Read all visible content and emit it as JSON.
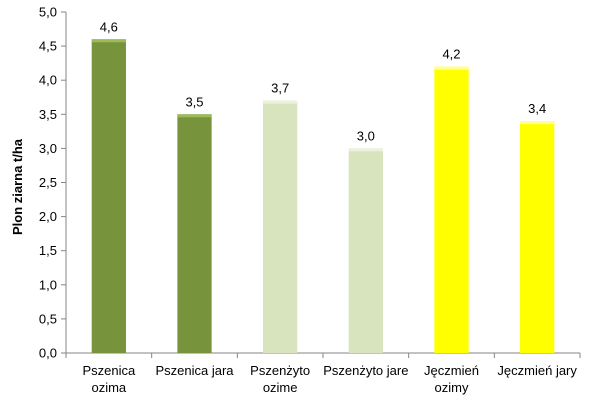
{
  "chart_data": {
    "type": "bar",
    "title": "",
    "xlabel": "",
    "ylabel": "Plon ziarna t/ha",
    "ylim": [
      0,
      5
    ],
    "y_ticks": [
      "0,0",
      "0,5",
      "1,0",
      "1,5",
      "2,0",
      "2,5",
      "3,0",
      "3,5",
      "4,0",
      "4,5",
      "5,0"
    ],
    "y_tick_values": [
      0,
      0.5,
      1.0,
      1.5,
      2.0,
      2.5,
      3.0,
      3.5,
      4.0,
      4.5,
      5.0
    ],
    "grid": false,
    "legend": "none",
    "categories": [
      [
        "Pszenica",
        "ozima"
      ],
      [
        "Pszenica jara"
      ],
      [
        "Pszenżyto",
        "ozime"
      ],
      [
        "Pszenżyto jare"
      ],
      [
        "Jęczmień",
        "ozimy"
      ],
      [
        "Jęczmień jary"
      ]
    ],
    "values": [
      4.6,
      3.5,
      3.7,
      3.0,
      4.2,
      3.4
    ],
    "value_labels": [
      "4,6",
      "3,5",
      "3,7",
      "3,0",
      "4,2",
      "3,4"
    ],
    "bar_colors": [
      "#77933c",
      "#77933c",
      "#d7e4bd",
      "#d7e4bd",
      "#ffff00",
      "#ffff00"
    ],
    "bar_top_colors": [
      "#9bbb59",
      "#9bbb59",
      "#ebf1de",
      "#ebf1de",
      "#ffff99",
      "#ffff99"
    ],
    "axis_color": "#868686"
  }
}
